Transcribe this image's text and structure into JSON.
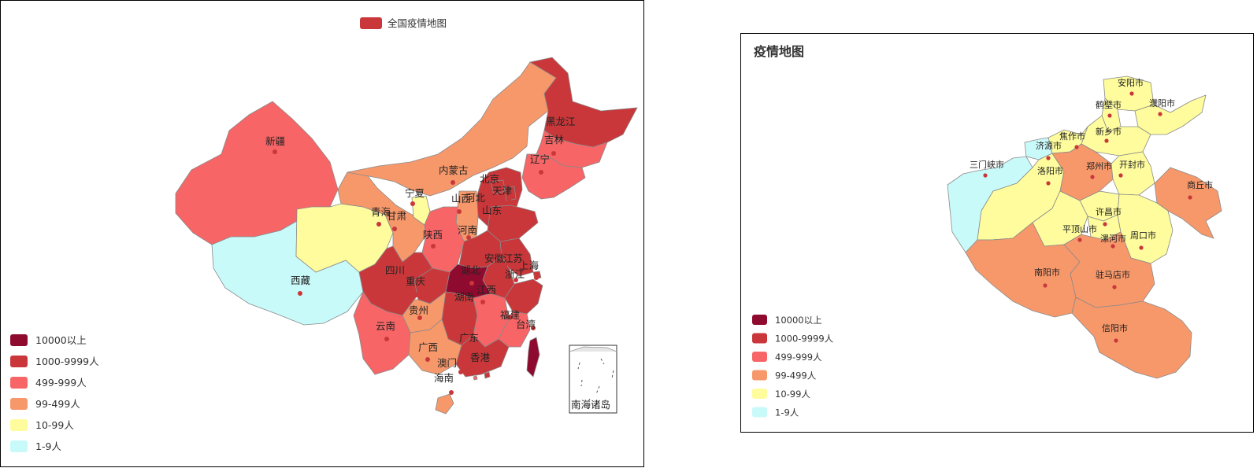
{
  "colors": {
    "l1": "#8e0a2e",
    "l2": "#c9373a",
    "l3": "#f76566",
    "l4": "#f7986b",
    "l5": "#fefc9c",
    "l6": "#c9fafa",
    "border": "#8a8a8a",
    "dot": "#c9373a"
  },
  "legend_items": [
    {
      "label": "10000以上",
      "level": "l1"
    },
    {
      "label": "1000-9999人",
      "level": "l2"
    },
    {
      "label": "499-999人",
      "level": "l3"
    },
    {
      "label": "99-499人",
      "level": "l4"
    },
    {
      "label": "10-99人",
      "level": "l5"
    },
    {
      "label": "1-9人",
      "level": "l6"
    }
  ],
  "china": {
    "series_name": "全国疫情地图",
    "inset_label": "南海诸岛",
    "provinces": [
      {
        "name": "新疆",
        "level": "l3"
      },
      {
        "name": "西藏",
        "level": "l6"
      },
      {
        "name": "青海",
        "level": "l5"
      },
      {
        "name": "甘肃",
        "level": "l4"
      },
      {
        "name": "宁夏",
        "level": "l5"
      },
      {
        "name": "内蒙古",
        "level": "l4"
      },
      {
        "name": "黑龙江",
        "level": "l2"
      },
      {
        "name": "吉林",
        "level": "l3"
      },
      {
        "name": "辽宁",
        "level": "l3"
      },
      {
        "name": "北京",
        "level": "l2"
      },
      {
        "name": "天津",
        "level": "l2"
      },
      {
        "name": "河北",
        "level": "l2"
      },
      {
        "name": "山西",
        "level": "l4"
      },
      {
        "name": "山东",
        "level": "l2"
      },
      {
        "name": "陕西",
        "level": "l3"
      },
      {
        "name": "河南",
        "level": "l2"
      },
      {
        "name": "安徽",
        "level": "l2"
      },
      {
        "name": "江苏",
        "level": "l2"
      },
      {
        "name": "上海",
        "level": "l2"
      },
      {
        "name": "四川",
        "level": "l2"
      },
      {
        "name": "重庆",
        "level": "l2"
      },
      {
        "name": "湖北",
        "level": "l1"
      },
      {
        "name": "湖南",
        "level": "l2"
      },
      {
        "name": "江西",
        "level": "l2"
      },
      {
        "name": "浙江",
        "level": "l2"
      },
      {
        "name": "贵州",
        "level": "l4"
      },
      {
        "name": "云南",
        "level": "l3"
      },
      {
        "name": "广西",
        "level": "l4"
      },
      {
        "name": "广东",
        "level": "l2"
      },
      {
        "name": "福建",
        "level": "l3"
      },
      {
        "name": "台湾",
        "level": "l1"
      },
      {
        "name": "香港",
        "level": "l2"
      },
      {
        "name": "澳门",
        "level": "l3"
      },
      {
        "name": "海南",
        "level": "l4"
      }
    ]
  },
  "henan": {
    "title": "疫情地图",
    "cities": [
      {
        "name": "安阳市",
        "level": "l5"
      },
      {
        "name": "鹤壁市",
        "level": "l5"
      },
      {
        "name": "濮阳市",
        "level": "l5"
      },
      {
        "name": "焦作市",
        "level": "l5"
      },
      {
        "name": "新乡市",
        "level": "l5"
      },
      {
        "name": "济源市",
        "level": "l6"
      },
      {
        "name": "三门峡市",
        "level": "l6"
      },
      {
        "name": "洛阳市",
        "level": "l5"
      },
      {
        "name": "郑州市",
        "level": "l4"
      },
      {
        "name": "开封市",
        "level": "l5"
      },
      {
        "name": "商丘市",
        "level": "l4"
      },
      {
        "name": "许昌市",
        "level": "l5"
      },
      {
        "name": "平顶山市",
        "level": "l5"
      },
      {
        "name": "漯河市",
        "level": "l5"
      },
      {
        "name": "周口市",
        "level": "l5"
      },
      {
        "name": "南阳市",
        "level": "l4"
      },
      {
        "name": "驻马店市",
        "level": "l4"
      },
      {
        "name": "信阳市",
        "level": "l4"
      }
    ]
  }
}
